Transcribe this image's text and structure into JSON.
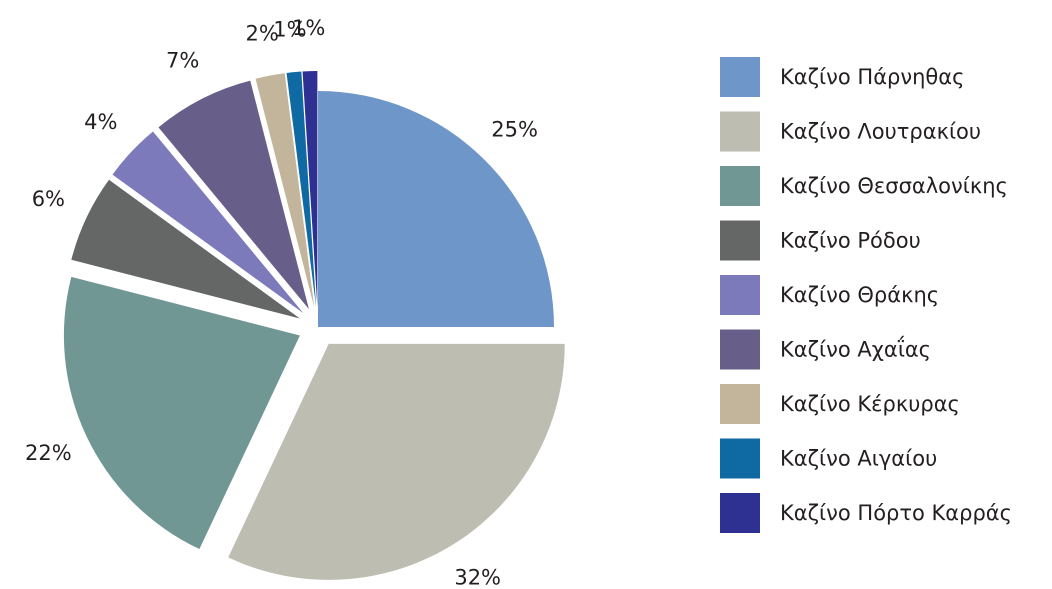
{
  "chart_data": {
    "type": "pie",
    "categories": [
      "Καζίνο Πάρνηθας",
      "Καζίνο Λουτρακίου",
      "Καζίνο Θεσσαλονίκης",
      "Καζίνο Ρόδου",
      "Καζίνο Θράκης",
      "Καζίνο Αχαΐας",
      "Καζίνο Κέρκυρας",
      "Καζίνο Αιγαίου",
      "Καζίνο Πόρτο Καρράς"
    ],
    "values": [
      25,
      32,
      22,
      6,
      4,
      7,
      2,
      1,
      1
    ],
    "value_labels": [
      "25%",
      "32%",
      "22%",
      "6%",
      "4%",
      "7%",
      "2%",
      "1%",
      "1%"
    ],
    "colors": [
      "#6f96c9",
      "#bdbdb1",
      "#719795",
      "#646766",
      "#7d7abb",
      "#675f8a",
      "#c3b59b",
      "#0f6aa4",
      "#2e3192"
    ],
    "legend": "right"
  }
}
